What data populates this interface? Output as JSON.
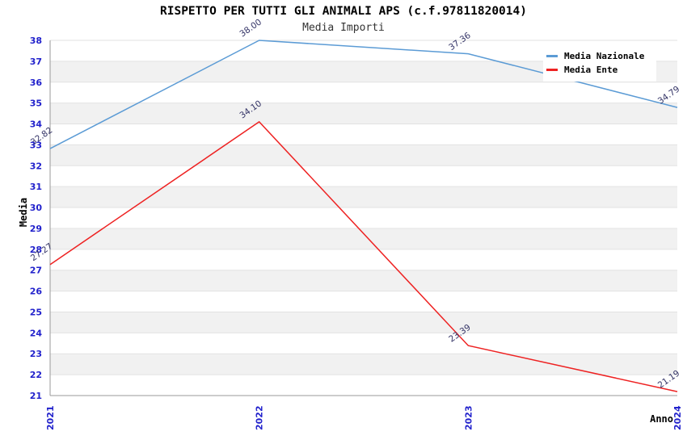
{
  "chart_data": {
    "type": "line",
    "title": "RISPETTO PER TUTTI GLI ANIMALI APS (c.f.97811820014)",
    "subtitle": "Media Importi",
    "xlabel": "Anno",
    "ylabel": "Media",
    "categories": [
      "2021",
      "2022",
      "2023",
      "2024"
    ],
    "ylim": [
      21,
      38
    ],
    "ytick_step": 1,
    "grid": "horizontal-bands",
    "legend_position": "top-right",
    "series": [
      {
        "name": "Media Nazionale",
        "color": "#5b9bd5",
        "values": [
          32.82,
          38.0,
          37.36,
          34.79
        ],
        "labels": [
          "32.82",
          "38.00",
          "37.36",
          "34.79"
        ]
      },
      {
        "name": "Media Ente",
        "color": "#ee2222",
        "values": [
          27.27,
          34.1,
          23.39,
          21.19
        ],
        "labels": [
          "27.27",
          "34.10",
          "23.39",
          "21.19"
        ]
      }
    ],
    "colors": {
      "tick_label": "#2222cc",
      "point_label": "#333366",
      "band": "#f1f1f1",
      "gridline": "#e2e2e2",
      "axis": "#999999",
      "title": "#000000",
      "subtitle": "#333333"
    }
  }
}
